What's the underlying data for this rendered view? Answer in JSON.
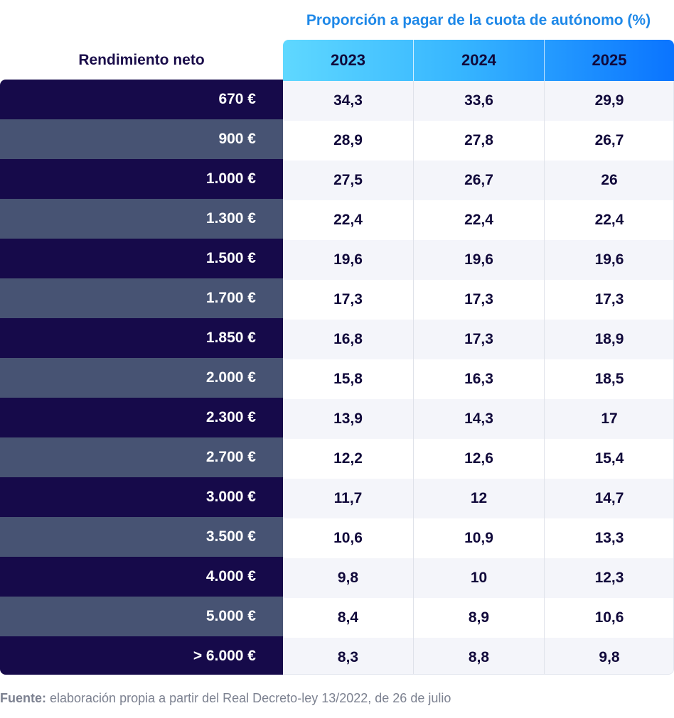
{
  "chart_data": {
    "type": "table",
    "title": "Proporción a pagar de la cuota de autónomo (%)",
    "row_header": "Rendimiento neto",
    "columns": [
      "2023",
      "2024",
      "2025"
    ],
    "rows": [
      {
        "label": "670 €",
        "values": [
          "34,3",
          "33,6",
          "29,9"
        ]
      },
      {
        "label": "900 €",
        "values": [
          "28,9",
          "27,8",
          "26,7"
        ]
      },
      {
        "label": "1.000 €",
        "values": [
          "27,5",
          "26,7",
          "26"
        ]
      },
      {
        "label": "1.300 €",
        "values": [
          "22,4",
          "22,4",
          "22,4"
        ]
      },
      {
        "label": "1.500 €",
        "values": [
          "19,6",
          "19,6",
          "19,6"
        ]
      },
      {
        "label": "1.700 €",
        "values": [
          "17,3",
          "17,3",
          "17,3"
        ]
      },
      {
        "label": "1.850 €",
        "values": [
          "16,8",
          "17,3",
          "18,9"
        ]
      },
      {
        "label": "2.000 €",
        "values": [
          "15,8",
          "16,3",
          "18,5"
        ]
      },
      {
        "label": "2.300 €",
        "values": [
          "13,9",
          "14,3",
          "17"
        ]
      },
      {
        "label": "2.700 €",
        "values": [
          "12,2",
          "12,6",
          "15,4"
        ]
      },
      {
        "label": "3.000 €",
        "values": [
          "11,7",
          "12",
          "14,7"
        ]
      },
      {
        "label": "3.500 €",
        "values": [
          "10,6",
          "10,9",
          "13,3"
        ]
      },
      {
        "label": "4.000 €",
        "values": [
          "9,8",
          "10",
          "12,3"
        ]
      },
      {
        "label": "5.000 €",
        "values": [
          "8,4",
          "8,9",
          "10,6"
        ]
      },
      {
        "label": "> 6.000 €",
        "values": [
          "8,3",
          "8,8",
          "9,8"
        ]
      }
    ]
  },
  "footer": {
    "source_label": "Fuente:",
    "source_text": " elaboración propia a partir del Real Decreto-ley 13/2022, de 26 de julio"
  },
  "colors": {
    "title": "#1e88e8",
    "row_dark": "#160a4a",
    "row_light": "#475373",
    "cell_text": "#10083a",
    "cell_alt_bg": "#f4f5fa",
    "cell_bg": "#ffffff"
  }
}
